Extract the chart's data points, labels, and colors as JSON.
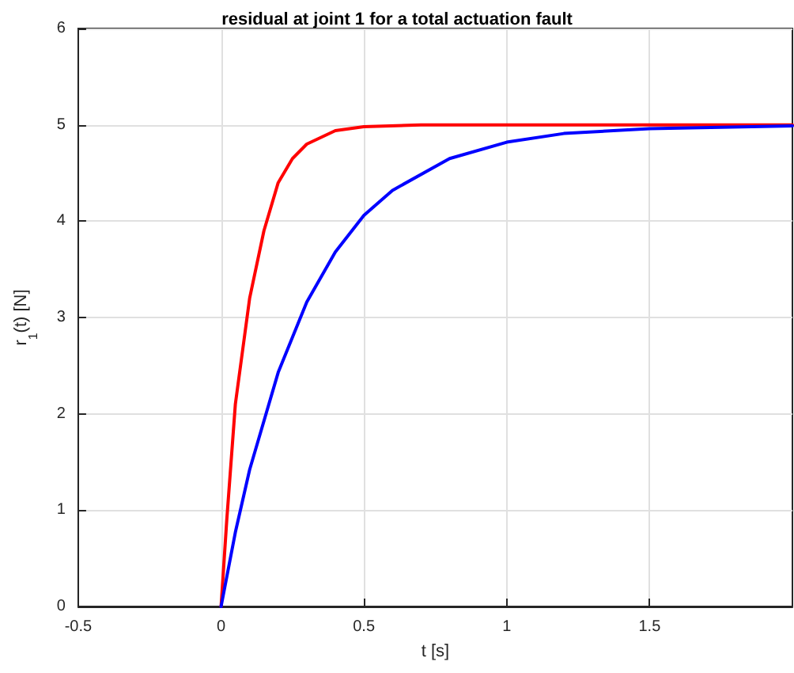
{
  "chart_data": {
    "type": "line",
    "title": "residual at joint 1 for a total actuation fault",
    "xlabel": "t [s]",
    "ylabel": "r$_{1}$(t) [N]",
    "xlim": [
      -0.5,
      2
    ],
    "xticks": [
      -0.5,
      0,
      0.5,
      1,
      1.5
    ],
    "ylim": [
      0,
      6
    ],
    "yticks": [
      0,
      1,
      2,
      3,
      4,
      5,
      6
    ],
    "grid": true,
    "marker": "none",
    "line_style": "solid",
    "series": [
      {
        "color": "#ff0000",
        "x": [
          0,
          0.02,
          0.05,
          0.1,
          0.15,
          0.2,
          0.25,
          0.3,
          0.4,
          0.5,
          0.7,
          1,
          1.5,
          2
        ],
        "values": [
          0,
          0.9,
          2.1,
          3.2,
          3.9,
          4.4,
          4.65,
          4.8,
          4.94,
          4.98,
          5,
          5,
          5,
          5
        ]
      },
      {
        "color": "#0000ff",
        "x": [
          0,
          0.05,
          0.1,
          0.2,
          0.3,
          0.4,
          0.5,
          0.6,
          0.8,
          1,
          1.2,
          1.5,
          2
        ],
        "values": [
          0,
          0.77,
          1.42,
          2.43,
          3.16,
          3.68,
          4.06,
          4.32,
          4.65,
          4.82,
          4.91,
          4.96,
          4.99
        ]
      }
    ]
  }
}
